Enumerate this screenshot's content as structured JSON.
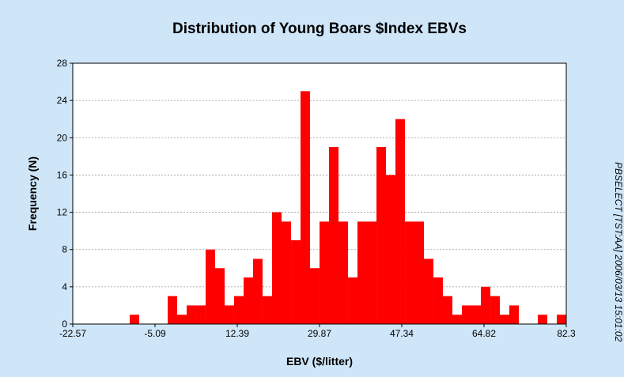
{
  "chart_data": {
    "type": "histogram",
    "title": "Distribution of Young Boars $Index EBVs",
    "x_label": "EBV ($/litter)",
    "y_label": "Frequency (N)",
    "side_note": "PBSELECT [TST:AA] 2006/03/13 15:01:02",
    "bins": [
      -22.57,
      -20.55,
      -18.54,
      -16.52,
      -14.5,
      -12.49,
      -10.47,
      -8.45,
      -6.44,
      -4.42,
      -2.4,
      -0.39,
      1.63,
      3.65,
      5.66,
      7.68,
      9.7,
      11.71,
      13.73,
      15.75,
      17.76,
      19.78,
      21.8,
      23.82,
      25.83,
      27.85,
      29.87,
      31.88,
      33.9,
      35.92,
      37.93,
      39.95,
      41.97,
      43.98,
      46.0,
      48.02,
      50.03,
      52.05,
      54.07,
      56.08,
      58.1,
      60.12,
      62.13,
      64.15,
      66.17,
      68.18,
      70.2,
      72.22,
      74.23,
      76.25,
      78.27,
      80.28,
      82.3
    ],
    "values": [
      0,
      0,
      0,
      0,
      0,
      0,
      1,
      0,
      0,
      0,
      3,
      1,
      2,
      2,
      8,
      6,
      2,
      3,
      5,
      7,
      3,
      12,
      11,
      9,
      25,
      6,
      11,
      19,
      11,
      5,
      11,
      11,
      19,
      16,
      22,
      11,
      11,
      7,
      5,
      3,
      1,
      2,
      2,
      4,
      3,
      1,
      2,
      0,
      0,
      1,
      0,
      1
    ],
    "color": "#ff0000",
    "xlim": [
      -22.57,
      82.3
    ],
    "xticks": [
      -22.57,
      -5.09,
      12.39,
      29.87,
      47.34,
      64.82,
      82.3
    ],
    "ylim": [
      0,
      28
    ],
    "yticks": [
      0,
      4,
      8,
      12,
      16,
      20,
      24,
      28
    ],
    "grid": true
  }
}
